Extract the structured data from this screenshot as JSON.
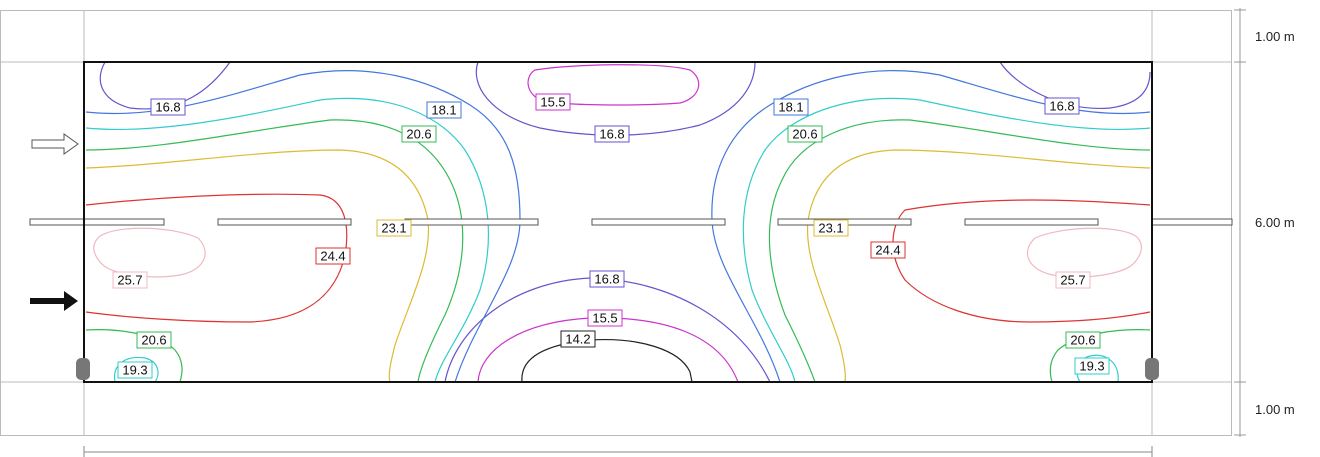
{
  "dimensions": {
    "top": "1.00 m",
    "middle": "6.00 m",
    "bottom": "1.00 m"
  },
  "isolines": [
    {
      "value": "14.2",
      "color": "#222222"
    },
    {
      "value": "15.5",
      "color": "#cc33cc"
    },
    {
      "value": "16.8",
      "color": "#6655cc"
    },
    {
      "value": "18.1",
      "color": "#4477dd"
    },
    {
      "value": "19.3",
      "color": "#33cccc"
    },
    {
      "value": "20.6",
      "color": "#33bb55"
    },
    {
      "value": "23.1",
      "color": "#ddbb33"
    },
    {
      "value": "24.4",
      "color": "#dd3333"
    },
    {
      "value": "25.7",
      "color": "#f0b8c0"
    }
  ],
  "labels": [
    {
      "text": "16.8",
      "color": "#6655cc"
    },
    {
      "text": "18.1",
      "color": "#4477dd"
    },
    {
      "text": "15.5",
      "color": "#cc33cc"
    },
    {
      "text": "16.8",
      "color": "#6655cc"
    },
    {
      "text": "18.1",
      "color": "#4477dd"
    },
    {
      "text": "16.8",
      "color": "#6655cc"
    },
    {
      "text": "20.6",
      "color": "#33bb55"
    },
    {
      "text": "20.6",
      "color": "#33bb55"
    },
    {
      "text": "23.1",
      "color": "#ddbb33"
    },
    {
      "text": "23.1",
      "color": "#ddbb33"
    },
    {
      "text": "24.4",
      "color": "#dd3333"
    },
    {
      "text": "24.4",
      "color": "#dd3333"
    },
    {
      "text": "25.7",
      "color": "#f0b8c0"
    },
    {
      "text": "25.7",
      "color": "#f0b8c0"
    },
    {
      "text": "16.8",
      "color": "#6655cc"
    },
    {
      "text": "15.5",
      "color": "#cc33cc"
    },
    {
      "text": "14.2",
      "color": "#222222"
    },
    {
      "text": "20.6",
      "color": "#33bb55"
    },
    {
      "text": "20.6",
      "color": "#33bb55"
    },
    {
      "text": "19.3",
      "color": "#33cccc"
    },
    {
      "text": "19.3",
      "color": "#33cccc"
    }
  ]
}
